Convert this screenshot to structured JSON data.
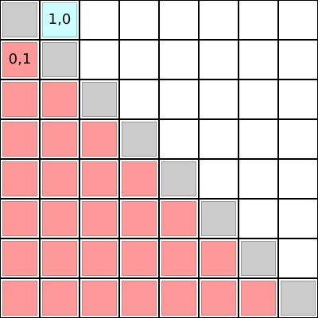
{
  "grid": {
    "rows": 8,
    "cols": 8,
    "colors": {
      "empty": "#ffffff",
      "diagonal": "#cccccc",
      "lower": "#ff9999",
      "highlight": "#ccffff"
    },
    "highlight_cell": {
      "row": 0,
      "col": 1
    },
    "labels": [
      {
        "row": 0,
        "col": 1,
        "text": "1,0"
      },
      {
        "row": 1,
        "col": 0,
        "text": "0,1"
      }
    ]
  }
}
